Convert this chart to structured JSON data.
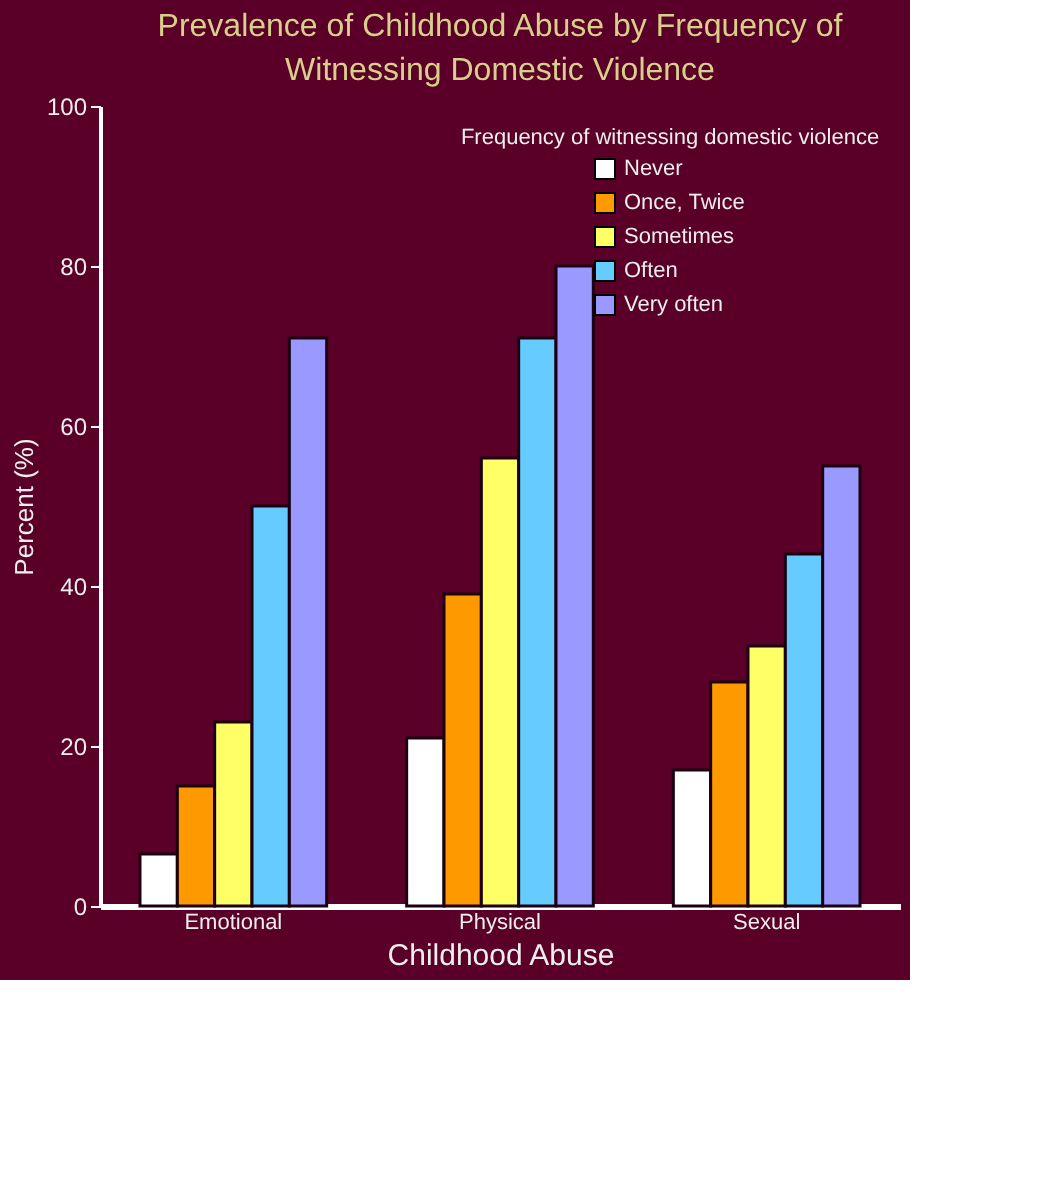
{
  "chart_data": {
    "type": "bar",
    "title": "Prevalence of Childhood Abuse by Frequency of Witnessing Domestic Violence",
    "xlabel": "Childhood Abuse",
    "ylabel": "Percent (%)",
    "legend_title": "Frequency of witnessing domestic violence",
    "categories": [
      "Emotional",
      "Physical",
      "Sexual"
    ],
    "series": [
      {
        "name": "Never",
        "color": "#ffffff",
        "values": [
          6.5,
          21,
          17
        ]
      },
      {
        "name": "Once, Twice",
        "color": "#ff9900",
        "values": [
          15,
          39,
          28
        ]
      },
      {
        "name": "Sometimes",
        "color": "#ffff66",
        "values": [
          23,
          56,
          32.5
        ]
      },
      {
        "name": "Often",
        "color": "#66ccff",
        "values": [
          50,
          71,
          44
        ]
      },
      {
        "name": "Very often",
        "color": "#9999ff",
        "values": [
          71,
          80,
          55
        ]
      }
    ],
    "ylim": [
      0,
      100
    ],
    "yticks": [
      0,
      20,
      40,
      60,
      80,
      100
    ],
    "grid": false,
    "legend": "top right"
  }
}
